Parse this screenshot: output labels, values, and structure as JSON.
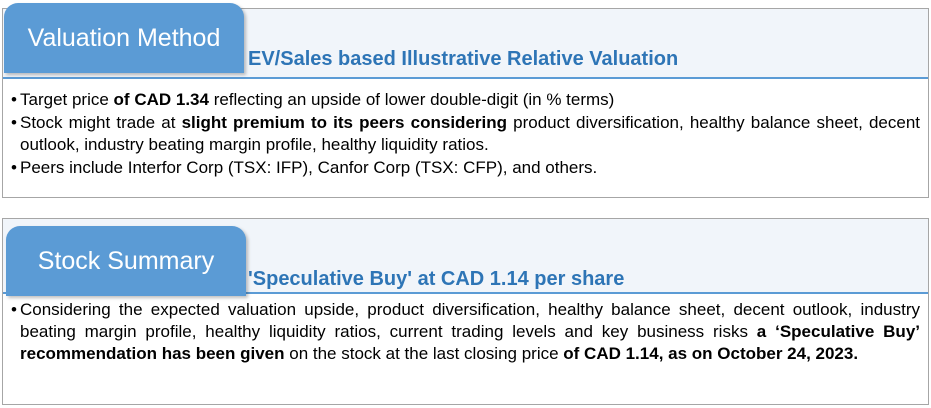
{
  "valuation": {
    "tab_label": "Valuation Method",
    "heading": "EV/Sales based Illustrative Relative Valuation",
    "bullets": [
      [
        {
          "t": "Target price "
        },
        {
          "t": "of CAD 1.34",
          "b": true
        },
        {
          "t": " reflecting an upside of lower double-digit (in % terms)"
        }
      ],
      [
        {
          "t": "Stock might trade at "
        },
        {
          "t": "slight premium to its peers considering",
          "b": true
        },
        {
          "t": " product diversification, healthy balance sheet, decent outlook, industry beating margin profile, healthy liquidity ratios."
        }
      ],
      [
        {
          "t": "Peers include Interfor Corp (TSX: IFP), Canfor Corp (TSX: CFP), and others."
        }
      ]
    ]
  },
  "summary": {
    "tab_label": "Stock Summary",
    "heading": "'Speculative Buy' at CAD 1.14 per share",
    "bullets": [
      [
        {
          "t": "Considering the expected valuation upside, product diversification, healthy balance sheet, decent outlook, industry beating margin profile, healthy liquidity ratios, current trading levels and key business risks "
        },
        {
          "t": "a ‘Speculative Buy’ recommendation has been given",
          "b": true
        },
        {
          "t": " on the stock at the last closing price "
        },
        {
          "t": "of CAD 1.14, as on October 24, 2023.",
          "b": true
        }
      ]
    ]
  }
}
